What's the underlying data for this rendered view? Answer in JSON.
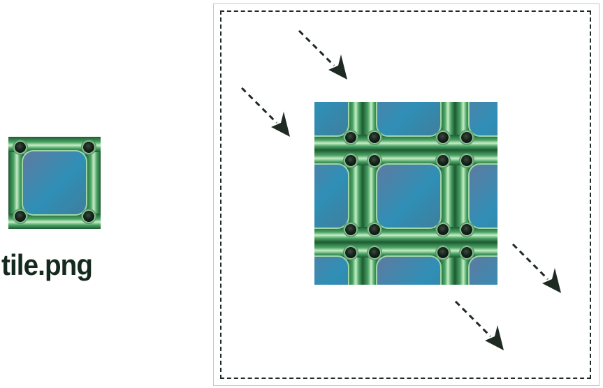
{
  "tile": {
    "caption": "tile.png",
    "icon": "tile-image",
    "colors": {
      "frame_dark": "#1f5c34",
      "frame_mid": "#3f9a58",
      "frame_light": "#b9e6bc",
      "center_top": "#5c7fa4",
      "center_bottom": "#2f90b5",
      "rivet": "#1a2a20"
    }
  },
  "canvas": {
    "icon": "tiled-background",
    "arrow_color": "#1f2a22",
    "border_color": "#1f2a22"
  }
}
